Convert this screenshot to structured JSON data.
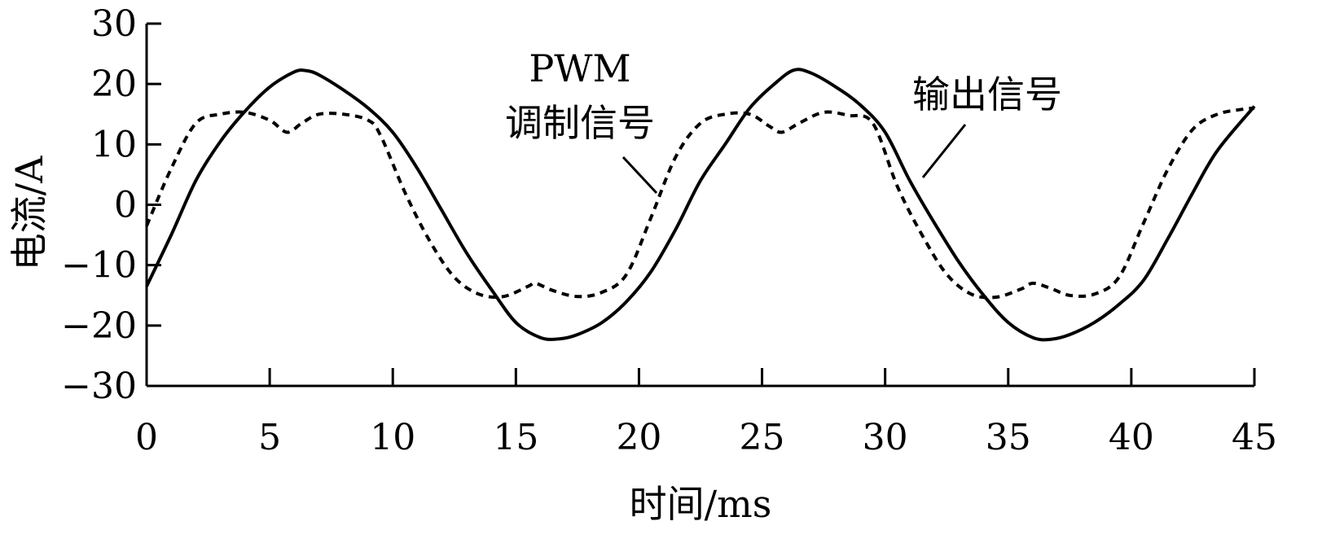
{
  "chart_data": {
    "type": "line",
    "title": "",
    "xlabel": "时间/ms",
    "ylabel": "电流/A",
    "xlim": [
      0,
      45
    ],
    "ylim": [
      -30,
      30
    ],
    "xticks": [
      0,
      5,
      10,
      15,
      20,
      25,
      30,
      35,
      40,
      45
    ],
    "yticks": [
      30,
      20,
      10,
      0,
      -10,
      -20,
      -30
    ],
    "ytick_labels": [
      "30",
      "20",
      "10",
      "0",
      "−10",
      "−20",
      "−30"
    ],
    "grid": false,
    "legend": "none",
    "series": [
      {
        "name": "输出信号",
        "style": "solid",
        "color": "#000000",
        "x": [
          0,
          1,
          2,
          3,
          4,
          5,
          6,
          6.5,
          7,
          8,
          9,
          10,
          11,
          12,
          13,
          14,
          15,
          16,
          16.8,
          17.5,
          18.5,
          19.5,
          20.5,
          21.5,
          22.5,
          23.5,
          24.5,
          25.5,
          26.3,
          27,
          28,
          29,
          30,
          31,
          32,
          33,
          34,
          35,
          36,
          36.7,
          37.5,
          38.5,
          39.5,
          40.5,
          41.5,
          42.5,
          43.5,
          45
        ],
        "y": [
          -13.5,
          -5,
          4,
          10.5,
          15.5,
          19.5,
          22,
          22.2,
          21.5,
          19,
          16,
          12,
          6,
          -1,
          -8,
          -14,
          -19.5,
          -22,
          -22.2,
          -21.5,
          -19.5,
          -16,
          -11,
          -4,
          4,
          10,
          16,
          20,
          22.3,
          21.8,
          19.5,
          16.5,
          12,
          4,
          -3,
          -9.5,
          -15,
          -19.5,
          -22,
          -22.3,
          -21.5,
          -19.5,
          -16.5,
          -12.5,
          -5.5,
          2,
          9,
          16.3
        ]
      },
      {
        "name": "PWM 调制信号",
        "style": "dashed",
        "color": "#000000",
        "x": [
          0,
          1,
          2,
          3,
          4,
          5,
          5.7,
          6.3,
          7,
          8,
          9,
          9.5,
          10.5,
          11.5,
          12.5,
          13.5,
          14.5,
          15.5,
          15.8,
          16.5,
          17.5,
          18.5,
          19.5,
          20.5,
          21.5,
          22.5,
          23.5,
          24.5,
          25.3,
          25.8,
          26.5,
          27.5,
          28.5,
          29.5,
          30.5,
          31.5,
          32.5,
          33.5,
          34.5,
          35.5,
          36,
          36.7,
          37.5,
          38.5,
          39.5,
          40.5,
          41.5,
          42.5,
          43.5,
          44.5,
          45
        ],
        "y": [
          -3.5,
          6,
          13.5,
          15,
          15.3,
          14,
          12,
          13.5,
          15,
          15,
          14,
          11.5,
          2,
          -6,
          -12,
          -14.8,
          -15.2,
          -13.5,
          -13,
          -14.2,
          -15.2,
          -14.5,
          -11.5,
          -2,
          8,
          13.5,
          15,
          15,
          13,
          12,
          13.5,
          15.3,
          14.8,
          13.5,
          3,
          -5,
          -11.5,
          -14.8,
          -15.3,
          -14,
          -13,
          -13.8,
          -15,
          -14.8,
          -12,
          -3,
          6,
          12.5,
          15,
          15.8,
          16
        ]
      }
    ],
    "annotations": [
      {
        "text": "PWM",
        "points_to": "PWM 调制信号"
      },
      {
        "text": "调制信号",
        "points_to": "PWM 调制信号"
      },
      {
        "text": "输出信号",
        "points_to": "输出信号"
      }
    ]
  }
}
